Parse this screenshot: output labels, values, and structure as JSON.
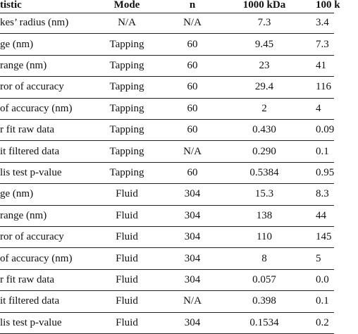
{
  "table": {
    "header": [
      "tistic",
      "Mode",
      "n",
      "1000 kDa",
      "100 k"
    ],
    "rows": [
      [
        "kes’ radius (nm)",
        "N/A",
        "N/A",
        "7.3",
        "3.4"
      ],
      [
        "ge (nm)",
        "Tapping",
        "60",
        "9.45",
        "7.3"
      ],
      [
        "range (nm)",
        "Tapping",
        "60",
        "23",
        "41"
      ],
      [
        "ror of accuracy",
        "Tapping",
        "60",
        "29.4",
        "116"
      ],
      [
        "of accuracy (nm)",
        "Tapping",
        "60",
        "2",
        "4"
      ],
      [
        "r fit raw data",
        "Tapping",
        "60",
        "0.430",
        "0.09"
      ],
      [
        "it filtered data",
        "Tapping",
        "N/A",
        "0.290",
        "0.1"
      ],
      [
        "lis test p-value",
        "Tapping",
        "60",
        "0.5384",
        "0.95"
      ],
      [
        "ge (nm)",
        "Fluid",
        "304",
        "15.3",
        "8.3"
      ],
      [
        "range (nm)",
        "Fluid",
        "304",
        "138",
        "44"
      ],
      [
        "ror of accuracy",
        "Fluid",
        "304",
        "110",
        "145"
      ],
      [
        "of accuracy (nm)",
        "Fluid",
        "304",
        "8",
        "5"
      ],
      [
        "r fit raw data",
        "Fluid",
        "304",
        "0.057",
        "0.0"
      ],
      [
        "it filtered data",
        "Fluid",
        "N/A",
        "0.398",
        "0.1"
      ],
      [
        "lis test p-value",
        "Fluid",
        "304",
        "0.1534",
        "0.2"
      ]
    ]
  }
}
